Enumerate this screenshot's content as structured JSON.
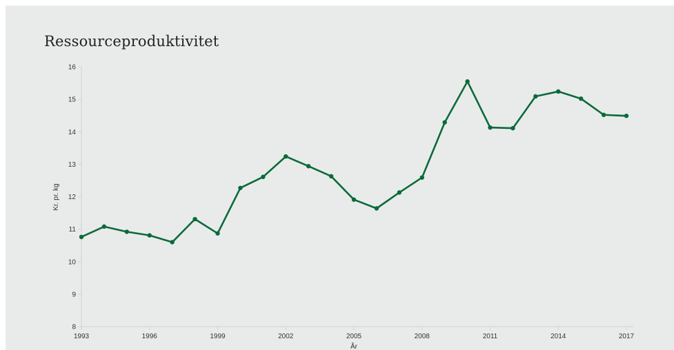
{
  "chart_data": {
    "type": "line",
    "title": "Ressourceproduktivitet",
    "xlabel": "År",
    "ylabel": "Kr. pr. kg",
    "x": [
      1993,
      1994,
      1995,
      1996,
      1997,
      1998,
      1999,
      2000,
      2001,
      2002,
      2003,
      2004,
      2005,
      2006,
      2007,
      2008,
      2009,
      2010,
      2011,
      2012,
      2013,
      2014,
      2015,
      2016,
      2017
    ],
    "values": [
      10.76,
      11.08,
      10.92,
      10.81,
      10.6,
      11.31,
      10.87,
      12.27,
      12.61,
      13.24,
      12.94,
      12.63,
      11.91,
      11.64,
      12.13,
      12.59,
      14.29,
      15.55,
      14.13,
      14.11,
      15.09,
      15.24,
      15.02,
      14.52,
      14.49
    ],
    "xticks": [
      "1993",
      "1996",
      "1999",
      "2002",
      "2005",
      "2008",
      "2011",
      "2014",
      "2017"
    ],
    "yticks": [
      "8",
      "9",
      "10",
      "11",
      "12",
      "13",
      "14",
      "15",
      "16"
    ],
    "xlim": [
      1993,
      2017
    ],
    "ylim": [
      8,
      16
    ],
    "grid": false,
    "line_color": "#0b6a3a"
  }
}
